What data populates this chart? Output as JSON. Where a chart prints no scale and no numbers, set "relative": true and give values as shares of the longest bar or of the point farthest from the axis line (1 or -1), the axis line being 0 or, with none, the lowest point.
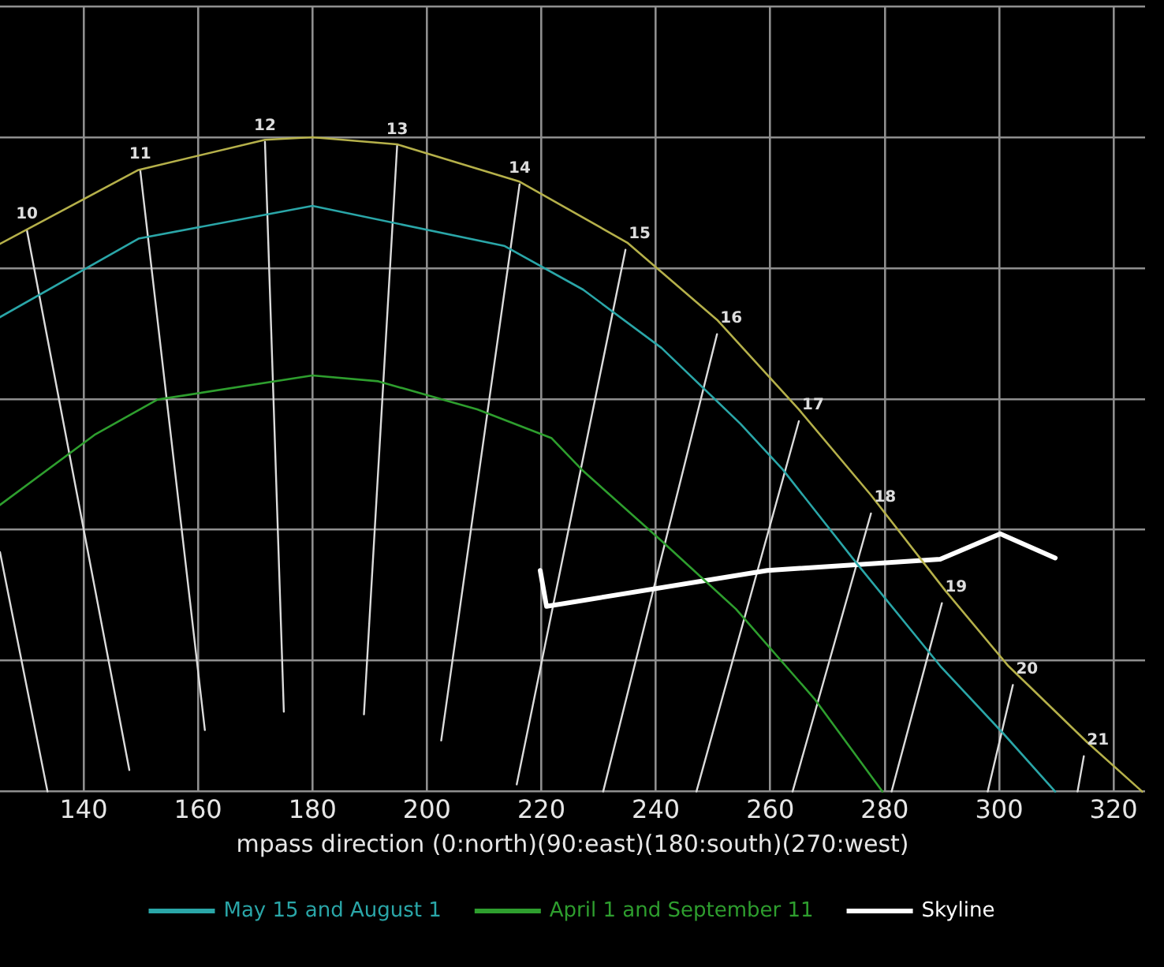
{
  "chart_data": {
    "type": "line",
    "xlabel": "mpass direction (0:north)(90:east)(180:south)(270:west)",
    "relative": true,
    "xlim": [
      125.4,
      325.5
    ],
    "xticks": [
      140,
      160,
      180,
      200,
      220,
      240,
      260,
      280,
      300,
      320
    ],
    "grid": true,
    "legend": "bottom",
    "marker": "none",
    "line_style": "solid",
    "series": [
      {
        "color": "#b5b04a",
        "x": [
          125.4,
          149.6,
          171.7,
          180,
          194.8,
          216.2,
          235.0,
          250.7,
          265.0,
          277.6,
          290.6,
          301.6,
          315.3,
          325.0
        ],
        "values": [
          0.837,
          0.95,
          0.996,
          1,
          0.989,
          0.932,
          0.839,
          0.721,
          0.584,
          0.453,
          0.307,
          0.192,
          0.076,
          0
        ]
      },
      {
        "name": "May 15 and August 1",
        "color": "#2aa6a8",
        "x": [
          125.4,
          149.6,
          180,
          213.5,
          227.3,
          241.0,
          254.8,
          262.2,
          274.9,
          289.7,
          300.7,
          309.8
        ],
        "values": [
          0.725,
          0.845,
          0.895,
          0.834,
          0.767,
          0.678,
          0.562,
          0.492,
          0.351,
          0.192,
          0.089,
          0
        ]
      },
      {
        "name": "April 1 and September 11",
        "color": "#2e9e2e",
        "x": [
          125.4,
          141.9,
          152.9,
          180,
          191.5,
          208.8,
          221.8,
          227.3,
          241.0,
          254.0,
          267.7,
          279.6
        ],
        "values": [
          0.438,
          0.545,
          0.599,
          0.636,
          0.627,
          0.584,
          0.54,
          0.49,
          0.383,
          0.279,
          0.142,
          0
        ]
      },
      {
        "name": "Skyline",
        "color": "#ffffff",
        "x": [
          219.8,
          220.9,
          259.5,
          289.7,
          300.2,
          309.8
        ],
        "values": [
          0.338,
          0.283,
          0.338,
          0.355,
          0.394,
          0.357
        ]
      },
      {
        "color": "#dcdcdc",
        "x": [
          125.4,
          133.7
        ],
        "values": [
          0.366,
          0
        ]
      },
      {
        "color": "#dcdcdc",
        "x": [
          130.1,
          148.0
        ],
        "values": [
          0.858,
          0.033
        ]
      },
      {
        "color": "#dcdcdc",
        "x": [
          149.9,
          161.2
        ],
        "values": [
          0.95,
          0.094
        ]
      },
      {
        "color": "#dcdcdc",
        "x": [
          171.7,
          175.0
        ],
        "values": [
          0.993,
          0.122
        ]
      },
      {
        "color": "#dcdcdc",
        "x": [
          194.8,
          189.0
        ],
        "values": [
          0.987,
          0.118
        ]
      },
      {
        "color": "#dcdcdc",
        "x": [
          216.2,
          202.5
        ],
        "values": [
          0.928,
          0.078
        ]
      },
      {
        "color": "#dcdcdc",
        "x": [
          234.7,
          215.7
        ],
        "values": [
          0.828,
          0.011
        ]
      },
      {
        "color": "#dcdcdc",
        "x": [
          250.7,
          230.8
        ],
        "values": [
          0.699,
          0
        ]
      },
      {
        "color": "#dcdcdc",
        "x": [
          265.0,
          247.1
        ],
        "values": [
          0.566,
          0
        ]
      },
      {
        "color": "#dcdcdc",
        "x": [
          277.6,
          263.9
        ],
        "values": [
          0.425,
          0
        ]
      },
      {
        "color": "#dcdcdc",
        "x": [
          290.0,
          281.2
        ],
        "values": [
          0.288,
          0
        ]
      },
      {
        "color": "#dcdcdc",
        "x": [
          302.4,
          298.0
        ],
        "values": [
          0.163,
          0
        ]
      },
      {
        "color": "#dcdcdc",
        "x": [
          314.8,
          313.7
        ],
        "values": [
          0.054,
          0
        ]
      }
    ],
    "annotations": [
      {
        "text": "10",
        "x": 130.1,
        "y": 0.858
      },
      {
        "text": "11",
        "x": 149.9,
        "y": 0.95
      },
      {
        "text": "12",
        "x": 171.7,
        "y": 0.993
      },
      {
        "text": "13",
        "x": 194.8,
        "y": 0.987
      },
      {
        "text": "14",
        "x": 216.2,
        "y": 0.928
      },
      {
        "text": "15",
        "x": 234.7,
        "y": 0.828
      },
      {
        "text": "16",
        "x": 250.7,
        "y": 0.699
      },
      {
        "text": "17",
        "x": 265.0,
        "y": 0.566
      },
      {
        "text": "18",
        "x": 277.6,
        "y": 0.425
      },
      {
        "text": "19",
        "x": 290.0,
        "y": 0.288
      },
      {
        "text": "20",
        "x": 302.4,
        "y": 0.163
      },
      {
        "text": "21",
        "x": 314.8,
        "y": 0.054
      }
    ]
  }
}
